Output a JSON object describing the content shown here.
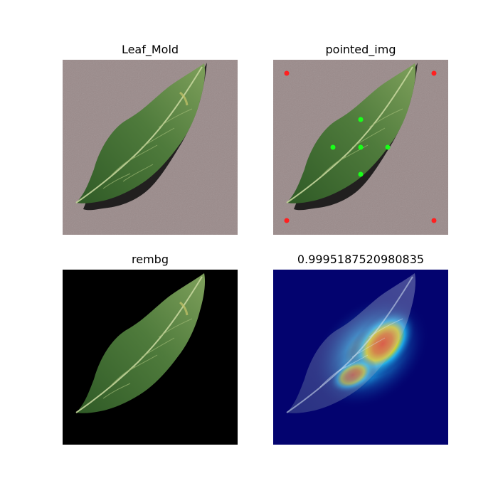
{
  "figure": {
    "panels": [
      {
        "id": "original",
        "title": "Leaf_Mold"
      },
      {
        "id": "points",
        "title": "pointed_img"
      },
      {
        "id": "mask",
        "title": "rembg"
      },
      {
        "id": "heatmap",
        "title": "0.9995187520980835"
      }
    ]
  },
  "colors": {
    "background": "#ffffff",
    "surface": "#9a8a8a",
    "leaf_dark": "#2f5a26",
    "leaf_mid": "#4f7b3c",
    "leaf_light": "#7ea05b",
    "shadow": "#0d0d0d",
    "mask_bg": "#000000",
    "background_point": "#ff2020",
    "leaf_point": "#19ff19",
    "heat_low": "#03036f",
    "heat_mid": "#22c7ff",
    "heat_high": "#ff2a00"
  }
}
